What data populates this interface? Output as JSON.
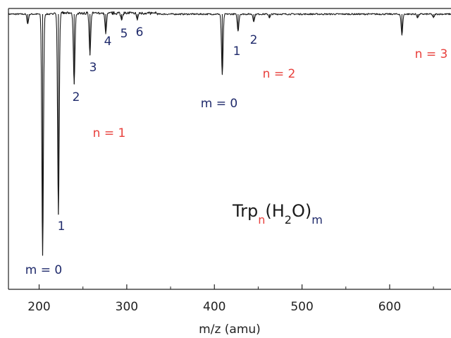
{
  "colors": {
    "trace": "#1a1a1a",
    "water_label": "#1f2a6b",
    "cluster_label": "#e8403c",
    "axis": "#222222"
  },
  "chart_data": {
    "type": "line",
    "xlabel": "m/z (amu)",
    "ylabel": "",
    "xlim": [
      165,
      670
    ],
    "xticks": [
      200,
      300,
      400,
      500,
      600
    ],
    "tick_labels": [
      "200",
      "300",
      "400",
      "500",
      "600"
    ],
    "yaxis_labeled": false,
    "grid": false,
    "baseline": 1.0,
    "peaks": [
      {
        "x": 187,
        "y": 0.96
      },
      {
        "x": 204,
        "y": 0.0
      },
      {
        "x": 222,
        "y": 0.17
      },
      {
        "x": 240,
        "y": 0.71
      },
      {
        "x": 258,
        "y": 0.83
      },
      {
        "x": 276,
        "y": 0.92
      },
      {
        "x": 294,
        "y": 0.975
      },
      {
        "x": 312,
        "y": 0.975
      },
      {
        "x": 409,
        "y": 0.75
      },
      {
        "x": 427,
        "y": 0.93
      },
      {
        "x": 445,
        "y": 0.97
      },
      {
        "x": 463,
        "y": 0.985
      },
      {
        "x": 614,
        "y": 0.915
      },
      {
        "x": 632,
        "y": 0.985
      },
      {
        "x": 650,
        "y": 0.985
      }
    ],
    "annotations": [
      {
        "text": "m = 0",
        "group": "water"
      },
      {
        "text": "1",
        "group": "water"
      },
      {
        "text": "2",
        "group": "water"
      },
      {
        "text": "3",
        "group": "water"
      },
      {
        "text": "4",
        "group": "water"
      },
      {
        "text": "5",
        "group": "water"
      },
      {
        "text": "6",
        "group": "water"
      },
      {
        "text": "n = 1",
        "group": "cluster"
      },
      {
        "text": "m = 0",
        "group": "water"
      },
      {
        "text": "1",
        "group": "water"
      },
      {
        "text": "2",
        "group": "water"
      },
      {
        "text": "n = 2",
        "group": "cluster"
      },
      {
        "text": "n = 3",
        "group": "cluster"
      }
    ],
    "formula": {
      "base": "Trp",
      "sub_n": "n",
      "mid": "(H",
      "sub_2": "2",
      "tail": "O)",
      "sub_m": "m"
    }
  }
}
